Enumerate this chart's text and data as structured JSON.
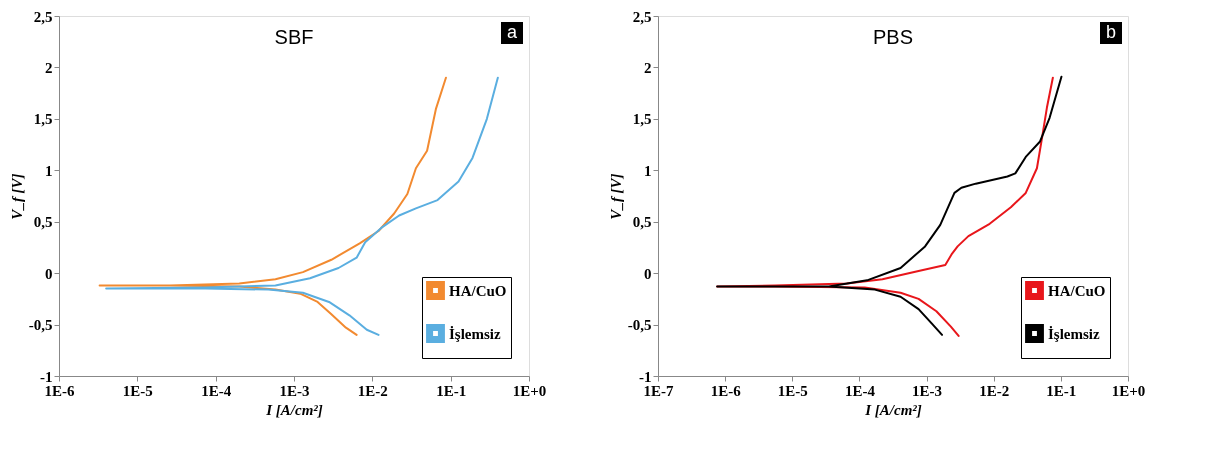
{
  "chart_data": [
    {
      "type": "line",
      "title": "SBF",
      "xlabel": "I [A/cm²]",
      "ylabel": "V_f [V]",
      "annotations": [
        "a"
      ],
      "log": "x",
      "grid": false,
      "legend": "bottom right",
      "marker": "none",
      "line_style": "solid",
      "xlim": [
        1e-06,
        1
      ],
      "xticks": [
        {
          "value": 1e-06,
          "label": "1E-6"
        },
        {
          "value": 1e-05,
          "label": "1E-5"
        },
        {
          "value": 0.0001,
          "label": "1E-4"
        },
        {
          "value": 0.001,
          "label": "1E-3"
        },
        {
          "value": 0.01,
          "label": "1E-2"
        },
        {
          "value": 0.1,
          "label": "1E-1"
        },
        {
          "value": 1,
          "label": "1E+0"
        }
      ],
      "ylim": [
        -1,
        2.5
      ],
      "yticks": [
        -1,
        {
          "value": -0.5,
          "label": "-0,5"
        },
        0,
        {
          "value": 0.5,
          "label": "0,5"
        },
        1,
        {
          "value": 1.5,
          "label": "1,5"
        },
        2,
        {
          "value": 2.5,
          "label": "2,5"
        }
      ],
      "series": [
        {
          "name": "HA/CuO",
          "color": "#f28a30",
          "x": [
            0.0063,
            0.0046,
            0.003,
            0.002,
            0.0012,
            0.00058,
            0.0002,
            2.6e-05,
            3.3e-06,
            2.6e-05,
            0.0002,
            0.00058,
            0.0013,
            0.003,
            0.0069,
            0.012,
            0.019,
            0.028,
            0.036,
            0.05,
            0.065,
            0.087
          ],
          "values": [
            -0.6,
            -0.53,
            -0.4,
            -0.28,
            -0.2,
            -0.16,
            -0.13,
            -0.12,
            -0.12,
            -0.12,
            -0.1,
            -0.06,
            0.01,
            0.13,
            0.29,
            0.41,
            0.58,
            0.77,
            1.02,
            1.19,
            1.6,
            1.9
          ]
        },
        {
          "name": "İşlemsiz",
          "color": "#5aaee0",
          "x": [
            0.012,
            0.0085,
            0.0051,
            0.0028,
            0.0013,
            0.00047,
            7.4e-05,
            4e-06,
            7.4e-05,
            0.00058,
            0.0016,
            0.0037,
            0.0063,
            0.0081,
            0.013,
            0.022,
            0.036,
            0.068,
            0.126,
            0.19,
            0.29,
            0.4
          ],
          "values": [
            -0.6,
            -0.55,
            -0.41,
            -0.28,
            -0.19,
            -0.16,
            -0.15,
            -0.15,
            -0.14,
            -0.12,
            -0.05,
            0.05,
            0.15,
            0.3,
            0.44,
            0.56,
            0.63,
            0.71,
            0.89,
            1.12,
            1.5,
            1.9
          ]
        }
      ]
    },
    {
      "type": "line",
      "title": "PBS",
      "xlabel": "I [A/cm²]",
      "ylabel": "V_f [V]",
      "annotations": [
        "b"
      ],
      "log": "x",
      "grid": false,
      "legend": "bottom right",
      "marker": "none",
      "line_style": "solid",
      "xlim": [
        1e-07,
        1
      ],
      "xticks": [
        {
          "value": 1e-07,
          "label": "1E-7"
        },
        {
          "value": 1e-06,
          "label": "1E-6"
        },
        {
          "value": 1e-05,
          "label": "1E-5"
        },
        {
          "value": 0.0001,
          "label": "1E-4"
        },
        {
          "value": 0.001,
          "label": "1E-3"
        },
        {
          "value": 0.01,
          "label": "1E-2"
        },
        {
          "value": 0.1,
          "label": "1E-1"
        },
        {
          "value": 1,
          "label": "1E+0"
        }
      ],
      "ylim": [
        -1,
        2.5
      ],
      "yticks": [
        -1,
        {
          "value": -0.5,
          "label": "-0,5"
        },
        0,
        {
          "value": 0.5,
          "label": "0,5"
        },
        1,
        {
          "value": 1.5,
          "label": "1,5"
        },
        2,
        {
          "value": 2.5,
          "label": "2,5"
        }
      ],
      "series": [
        {
          "name": "HA/CuO",
          "color": "#e8161b",
          "x": [
            0.003,
            0.0023,
            0.0014,
            0.00076,
            0.00041,
            0.00012,
            5.5e-06,
            7.6e-07,
            5.5e-06,
            6.5e-05,
            0.00022,
            0.00076,
            0.0019,
            0.0024,
            0.0029,
            0.0042,
            0.0087,
            0.018,
            0.03,
            0.044,
            0.052,
            0.062,
            0.076
          ],
          "values": [
            -0.61,
            -0.52,
            -0.37,
            -0.25,
            -0.19,
            -0.14,
            -0.13,
            -0.13,
            -0.12,
            -0.1,
            -0.06,
            0.02,
            0.08,
            0.19,
            0.26,
            0.36,
            0.48,
            0.64,
            0.78,
            1.02,
            1.3,
            1.61,
            1.9
          ]
        },
        {
          "name": "İşlemsiz",
          "color": "#000000",
          "x": [
            0.0017,
            0.0012,
            0.00076,
            0.00041,
            0.00017,
            3.5e-05,
            7.6e-07,
            3.5e-05,
            0.00013,
            0.00041,
            0.00095,
            0.0016,
            0.0026,
            0.0033,
            0.0054,
            0.016,
            0.021,
            0.03,
            0.049,
            0.068,
            0.102
          ],
          "values": [
            -0.6,
            -0.49,
            -0.35,
            -0.23,
            -0.16,
            -0.13,
            -0.13,
            -0.13,
            -0.07,
            0.05,
            0.26,
            0.47,
            0.78,
            0.83,
            0.87,
            0.94,
            0.97,
            1.13,
            1.28,
            1.51,
            1.91
          ]
        }
      ]
    }
  ]
}
